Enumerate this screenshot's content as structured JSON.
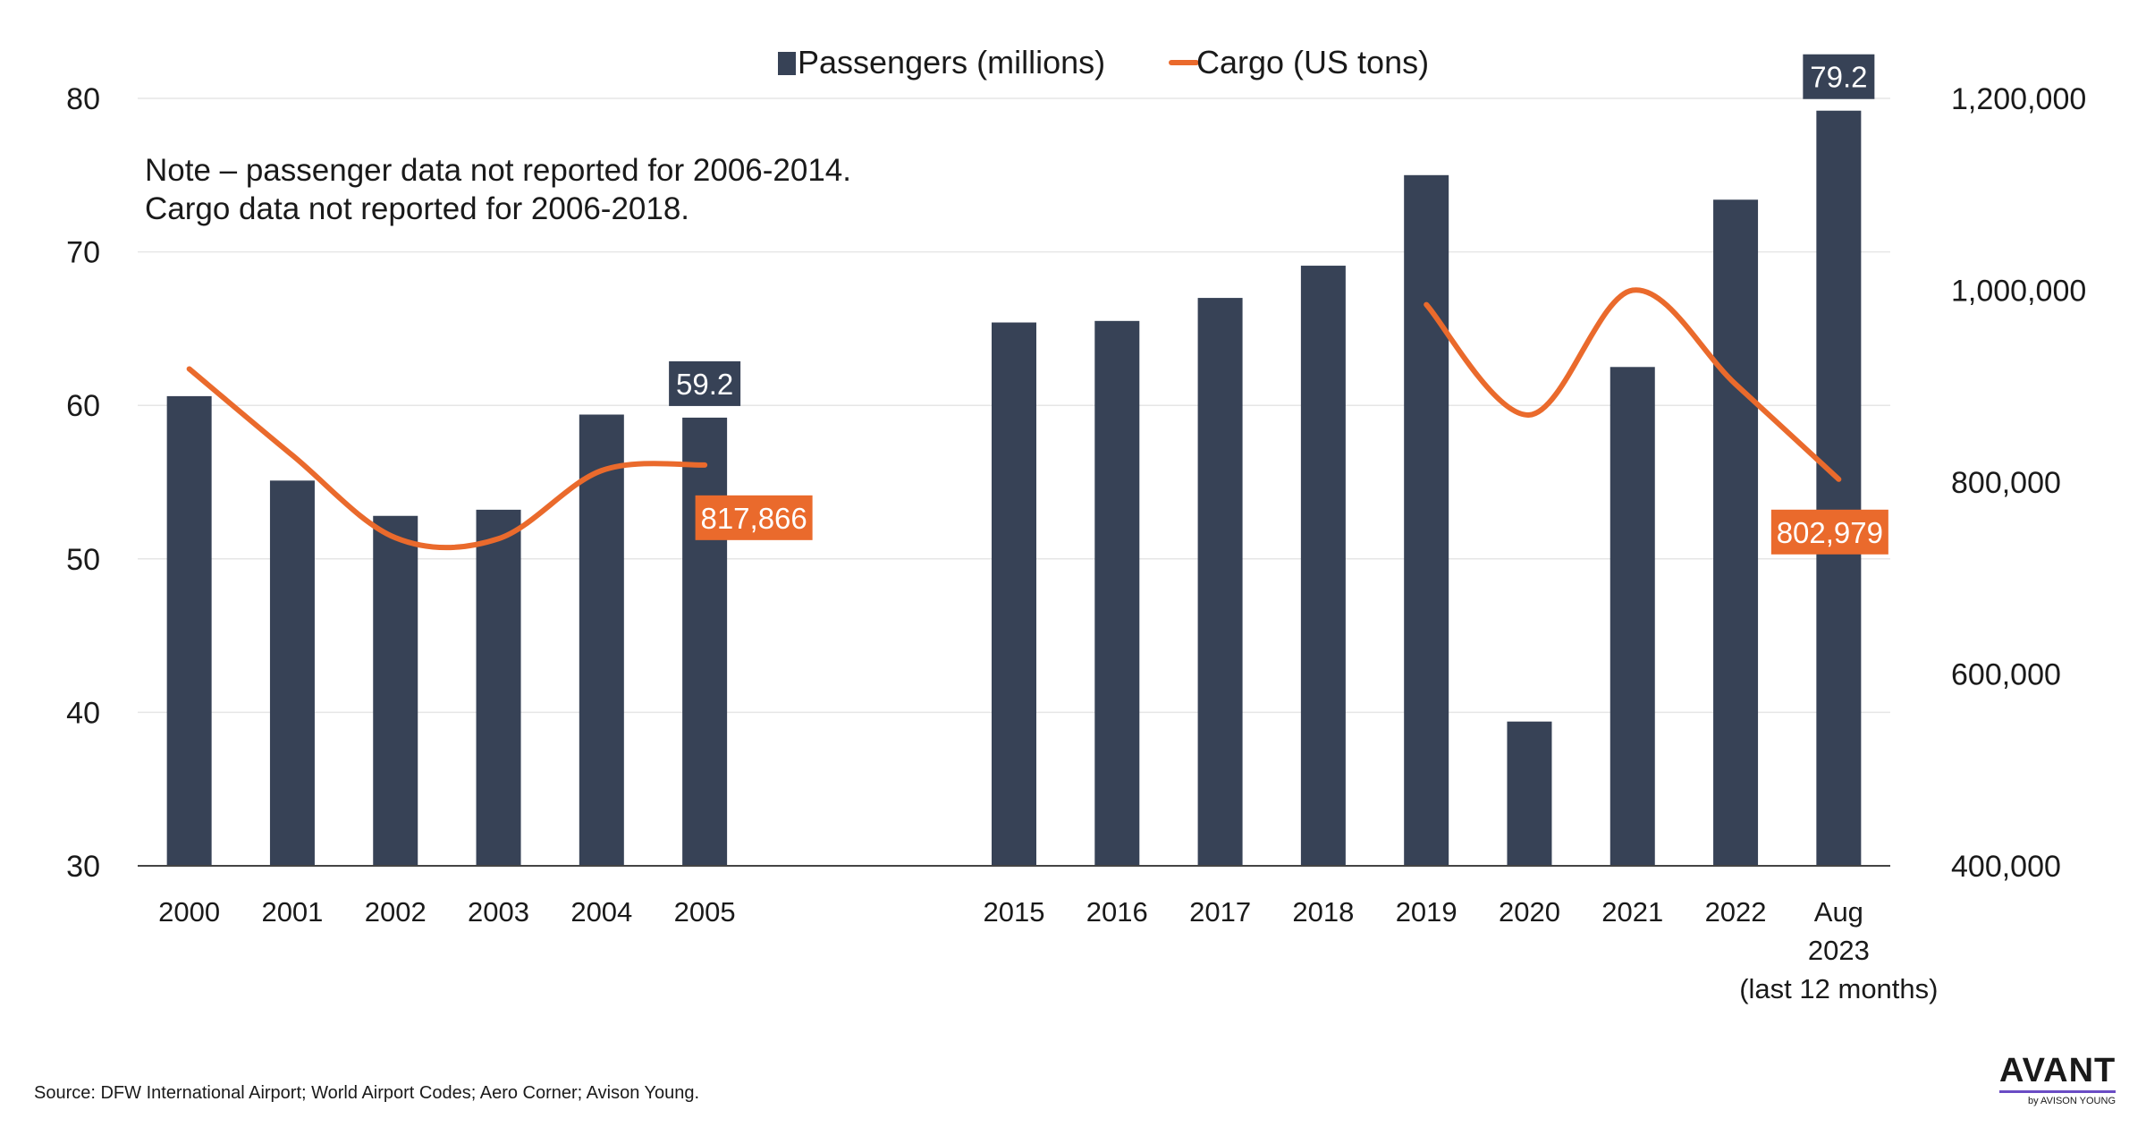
{
  "chart_data": {
    "type": "bar",
    "categories": [
      "2000",
      "2001",
      "2002",
      "2003",
      "2004",
      "2005",
      "",
      "",
      "2015",
      "2016",
      "2017",
      "2018",
      "2019",
      "2020",
      "2021",
      "2022",
      "Aug 2023 (last 12 months)"
    ],
    "category_lines": [
      [
        "2000"
      ],
      [
        "2001"
      ],
      [
        "2002"
      ],
      [
        "2003"
      ],
      [
        "2004"
      ],
      [
        "2005"
      ],
      [
        ""
      ],
      [
        ""
      ],
      [
        "2015"
      ],
      [
        "2016"
      ],
      [
        "2017"
      ],
      [
        "2018"
      ],
      [
        "2019"
      ],
      [
        "2020"
      ],
      [
        "2021"
      ],
      [
        "2022"
      ],
      [
        "Aug",
        "2023",
        "(last 12 months)"
      ]
    ],
    "series": [
      {
        "name": "Passengers (millions)",
        "type": "bar",
        "axis": "left",
        "color": "#374256",
        "values": [
          60.6,
          55.1,
          52.8,
          53.2,
          59.4,
          59.2,
          null,
          null,
          65.4,
          65.5,
          67.0,
          69.1,
          75.0,
          39.4,
          62.5,
          73.4,
          79.2
        ]
      },
      {
        "name": "Cargo (US tons)",
        "type": "line",
        "axis": "right",
        "color": "#ea6a2c",
        "values": [
          918000,
          828000,
          742000,
          741000,
          812000,
          817866,
          null,
          null,
          null,
          null,
          null,
          null,
          985000,
          870000,
          1000000,
          902000,
          802979
        ]
      }
    ],
    "y_left": {
      "min": 30,
      "max": 80,
      "ticks": [
        "30",
        "40",
        "50",
        "60",
        "70",
        "80"
      ]
    },
    "y_right": {
      "min": 400000,
      "max": 1200000,
      "ticks": [
        "400,000",
        "600,000",
        "800,000",
        "1,000,000",
        "1,200,000"
      ]
    },
    "legend": {
      "position": "top-center"
    },
    "grid": true,
    "annotation": [
      "Note – passenger data not reported for 2006-2014.",
      "Cargo data not reported for 2006-2018."
    ],
    "data_labels": [
      {
        "series": 0,
        "index": 5,
        "text": "59.2"
      },
      {
        "series": 0,
        "index": 16,
        "text": "79.2"
      },
      {
        "series": 1,
        "index": 5,
        "text": "817,866"
      },
      {
        "series": 1,
        "index": 16,
        "text": "802,979"
      }
    ],
    "colors": {
      "bar": "#374256",
      "line": "#ea6a2c",
      "grid": "#e6e6e6",
      "axis": "#444444"
    }
  },
  "footer": {
    "source": "Source:  DFW International Airport; World Airport Codes; Aero Corner; Avison Young."
  },
  "logo": {
    "main": "AVANT",
    "sub": "by AVISON YOUNG"
  }
}
